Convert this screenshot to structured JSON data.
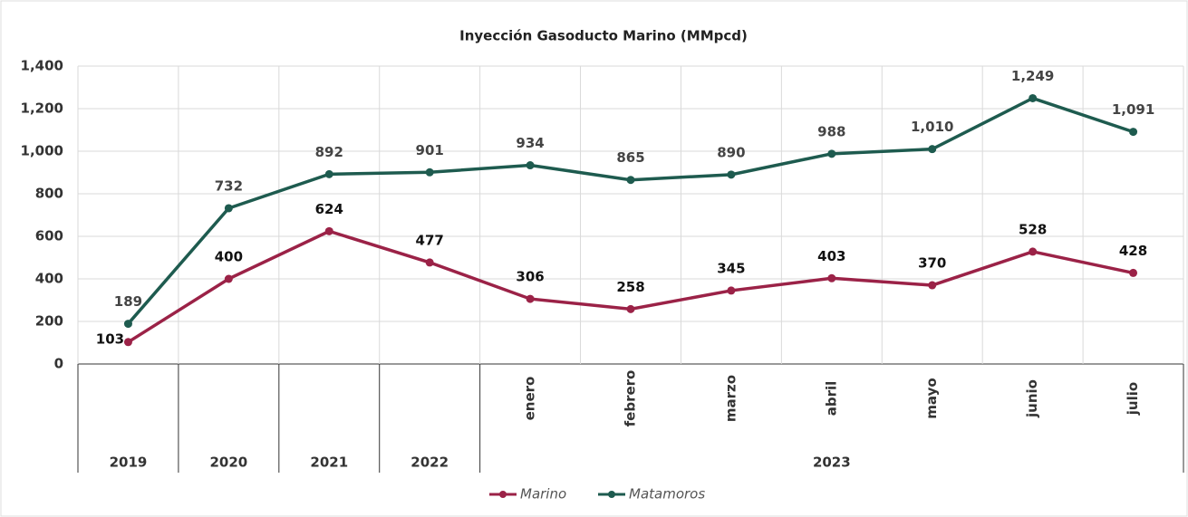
{
  "chart_data": {
    "type": "line",
    "title": "Inyección Gasoducto Marino (MMpcd)",
    "categories": [
      null,
      null,
      null,
      null,
      "enero",
      "febrero",
      "marzo",
      "abril",
      "mayo",
      "junio",
      "julio"
    ],
    "category_groups": [
      "2019",
      "2020",
      "2021",
      "2022",
      "2023",
      "2023",
      "2023",
      "2023",
      "2023",
      "2023",
      "2023"
    ],
    "series": [
      {
        "name": "Marino",
        "color": "#9b2247",
        "values": [
          103,
          400,
          624,
          477,
          306,
          258,
          345,
          403,
          370,
          528,
          428
        ]
      },
      {
        "name": "Matamoros",
        "color": "#1e5b4f",
        "values": [
          189,
          732,
          892,
          901,
          934,
          865,
          890,
          988,
          1010,
          1249,
          1091
        ],
        "value_labels": [
          "189",
          "732",
          "892",
          "901",
          "934",
          "865",
          "890",
          "988",
          "1,010",
          "1,249",
          "1,091"
        ]
      }
    ],
    "ylim": [
      0,
      1400
    ],
    "yticks": [
      0,
      200,
      400,
      600,
      800,
      {
        "value": 1000,
        "label": "1,000"
      },
      {
        "value": 1200,
        "label": "1,200"
      },
      {
        "value": 1400,
        "label": "1,400"
      }
    ],
    "grid": true,
    "legend": "bottom"
  }
}
